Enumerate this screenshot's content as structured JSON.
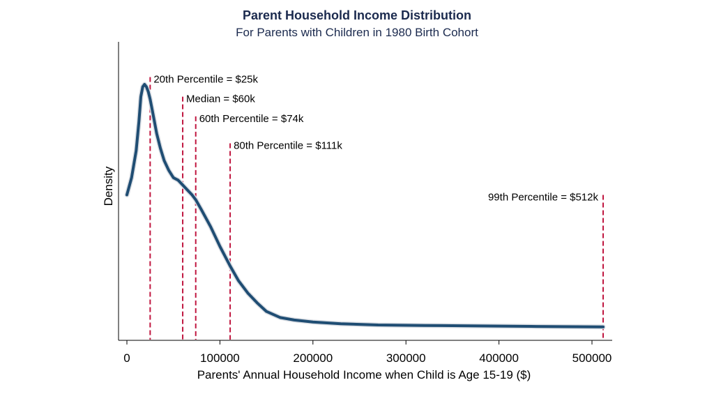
{
  "chart_data": {
    "type": "line",
    "title": "Parent Household Income Distribution",
    "subtitle": "For Parents with Children in 1980 Birth Cohort",
    "xlabel": "Parents' Annual Household Income when Child is Age 15-19 ($)",
    "ylabel": "Density",
    "xlim": [
      0,
      520000
    ],
    "ylim": [
      0,
      1
    ],
    "xticks": [
      0,
      100000,
      200000,
      300000,
      400000,
      500000
    ],
    "xtick_labels": [
      "0",
      "100000",
      "200000",
      "300000",
      "400000",
      "500000"
    ],
    "grid": false,
    "series": [
      {
        "x": [
          0,
          5000,
          10000,
          13000,
          15000,
          17000,
          19000,
          21000,
          23000,
          25000,
          28000,
          32000,
          36000,
          40000,
          45000,
          50000,
          55000,
          60000,
          65000,
          70000,
          74000,
          80000,
          90000,
          100000,
          111000,
          120000,
          130000,
          140000,
          150000,
          165000,
          180000,
          200000,
          230000,
          270000,
          320000,
          380000,
          440000,
          512000
        ],
        "y": [
          0.55,
          0.62,
          0.73,
          0.85,
          0.95,
          0.99,
          1.0,
          0.99,
          0.97,
          0.94,
          0.88,
          0.8,
          0.74,
          0.69,
          0.65,
          0.62,
          0.61,
          0.59,
          0.57,
          0.55,
          0.53,
          0.49,
          0.42,
          0.34,
          0.26,
          0.2,
          0.15,
          0.11,
          0.075,
          0.05,
          0.04,
          0.032,
          0.025,
          0.02,
          0.018,
          0.016,
          0.014,
          0.012
        ],
        "color": "#1f4d73"
      }
    ],
    "annotations": [
      {
        "x": 25000,
        "label": "20th Percentile = $25k",
        "top": 0.99,
        "label_side": "right"
      },
      {
        "x": 60000,
        "label": "Median = $60k",
        "top": 0.91,
        "label_side": "right"
      },
      {
        "x": 74000,
        "label": "60th Percentile = $74k",
        "top": 0.83,
        "label_side": "right"
      },
      {
        "x": 111000,
        "label": "80th Percentile = $111k",
        "top": 0.72,
        "label_side": "right"
      },
      {
        "x": 512000,
        "label": "99th Percentile = $512k",
        "top": 0.51,
        "label_side": "left"
      }
    ],
    "annotation_color": "#c0163f"
  }
}
